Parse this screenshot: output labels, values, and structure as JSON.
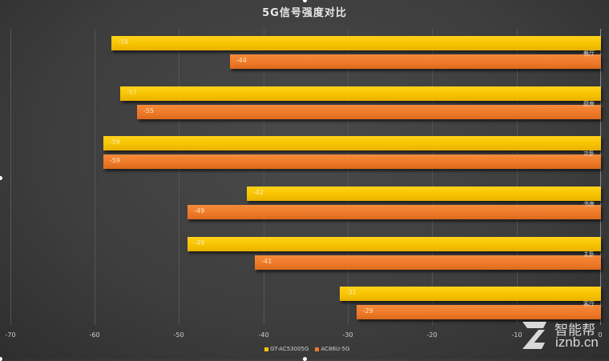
{
  "chart_data": {
    "type": "bar",
    "orientation": "horizontal",
    "title": "5G信号强度对比",
    "xlabel": "",
    "ylabel": "",
    "xlim": [
      -70,
      0
    ],
    "xticks": [
      "-70",
      "-60",
      "-50",
      "-40",
      "-30",
      "-20",
      "-10",
      "0"
    ],
    "grid": true,
    "legend_position": "bottom",
    "categories": [
      "餐厅",
      "厨房",
      "次卧",
      "书房",
      "主卧",
      "客厅"
    ],
    "series": [
      {
        "name": "GT-AC5300 5G",
        "color": "#f7c400",
        "values": [
          -58,
          -57,
          -59,
          -42,
          -49,
          -31
        ]
      },
      {
        "name": "AC86U-5G",
        "color": "#ee7a2a",
        "values": [
          -44,
          -55,
          -59,
          -49,
          -41,
          -29
        ]
      }
    ]
  },
  "legend": {
    "s1": "GT-AC53005G",
    "s2": "AC86U-5G"
  },
  "bars": {
    "c0": {
      "cat": "餐厅",
      "a": "-58",
      "b": "-44"
    },
    "c1": {
      "cat": "厨房",
      "a": "-57",
      "b": "-55"
    },
    "c2": {
      "cat": "次卧",
      "a": "-59",
      "b": "-59"
    },
    "c3": {
      "cat": "书房",
      "a": "-42",
      "b": "-49"
    },
    "c4": {
      "cat": "主卧",
      "a": "-49",
      "b": "-41"
    },
    "c5": {
      "cat": "客厅",
      "a": "-31",
      "b": "-29"
    }
  },
  "ticks": {
    "t0": "-70",
    "t1": "-60",
    "t2": "-50",
    "t3": "-40",
    "t4": "-30",
    "t5": "-20",
    "t6": "-10",
    "t7": "0"
  },
  "watermark": {
    "cn": "智能帮",
    "url": "iznb.cn"
  }
}
